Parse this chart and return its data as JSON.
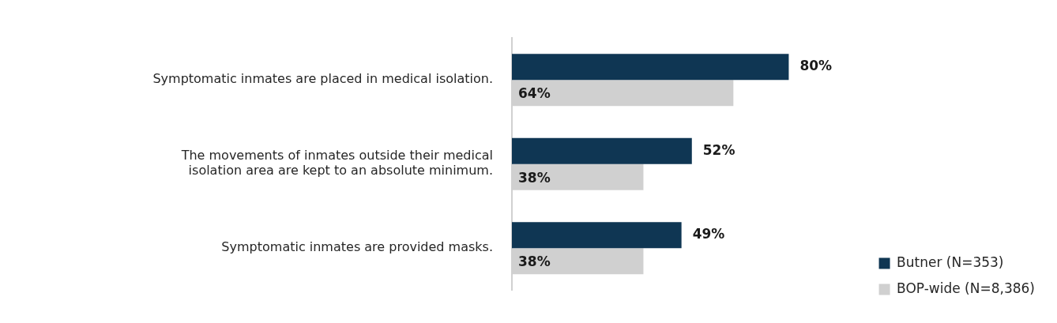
{
  "chart_data": {
    "type": "bar",
    "orientation": "horizontal",
    "categories": [
      "Symptomatic inmates are placed in medical isolation.",
      "The movements of inmates outside their medical isolation area are kept to an absolute minimum.",
      "Symptomatic inmates are provided masks."
    ],
    "series": [
      {
        "name": "Butner (N=353)",
        "color": "#0f3653",
        "values": [
          80,
          52,
          49
        ],
        "value_labels": [
          "80%",
          "52%",
          "49%"
        ]
      },
      {
        "name": "BOP-wide (N=8,386)",
        "color": "#d0d0d0",
        "values": [
          64,
          38,
          38
        ],
        "value_labels": [
          "64%",
          "38%",
          "38%"
        ]
      }
    ],
    "legend": "bottom right",
    "grid": false
  }
}
